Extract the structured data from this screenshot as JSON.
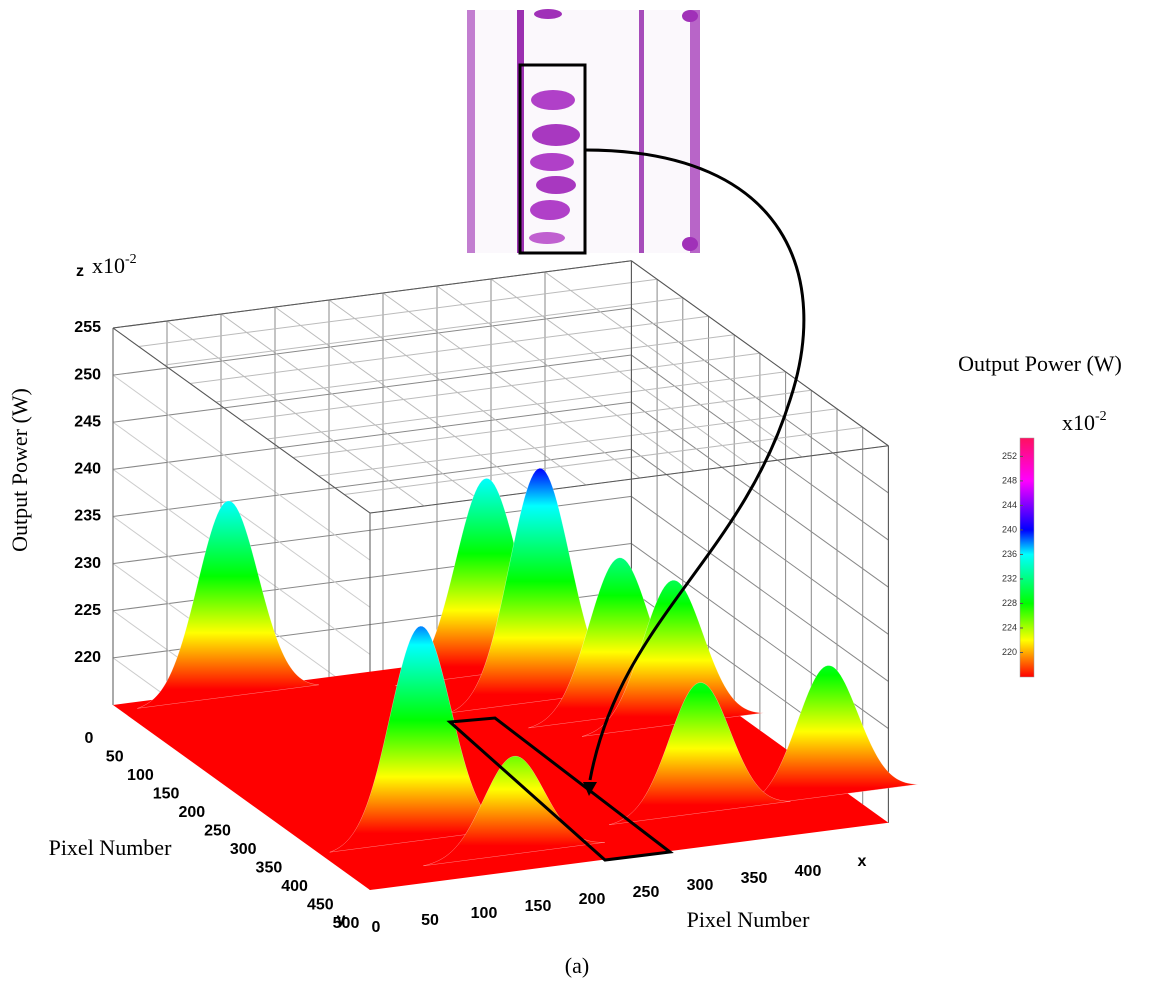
{
  "chart_data": {
    "type": "surface3d",
    "zlabel": "Output Power (W)",
    "z_multiplier": {
      "base": "x10",
      "exponent": "-2"
    },
    "axis_letters": {
      "x": "x",
      "y": "y",
      "z": "z"
    },
    "xlabel": "Pixel Number",
    "ylabel": "Pixel Number",
    "xlim": [
      0,
      480
    ],
    "ylim": [
      0,
      500
    ],
    "zlim": [
      215,
      255
    ],
    "xticks": [
      0,
      50,
      100,
      150,
      200,
      250,
      300,
      350,
      400
    ],
    "yticks": [
      0,
      50,
      100,
      150,
      200,
      250,
      300,
      350,
      400,
      450,
      500
    ],
    "zticks": [
      220,
      225,
      230,
      235,
      240,
      245,
      250,
      255
    ],
    "grid": true,
    "floor_color": "#ff0000",
    "peaks": {
      "x": [
        324,
        97,
        336,
        383,
        416,
        460,
        341,
        91,
        151
      ],
      "y": [
        45,
        20,
        124,
        180,
        215,
        424,
        425,
        407,
        463
      ],
      "z": [
        236,
        236,
        240,
        232,
        230.5,
        229,
        229,
        238,
        225.5
      ]
    },
    "colorbar": {
      "title": "Output Power (W)",
      "multiplier": {
        "base": "x10",
        "exponent": "-2"
      },
      "clim": [
        216,
        255
      ],
      "ticks": [
        220,
        224,
        228,
        232,
        236,
        240,
        244,
        248,
        252
      ],
      "colorscale": [
        [
          216,
          "#ff0000"
        ],
        [
          222,
          "#ffff00"
        ],
        [
          228,
          "#00ff00"
        ],
        [
          236,
          "#00ffff"
        ],
        [
          240,
          "#0000ff"
        ],
        [
          248,
          "#ff00ff"
        ],
        [
          255,
          "#ff1060"
        ]
      ]
    },
    "caption": "(a)"
  }
}
